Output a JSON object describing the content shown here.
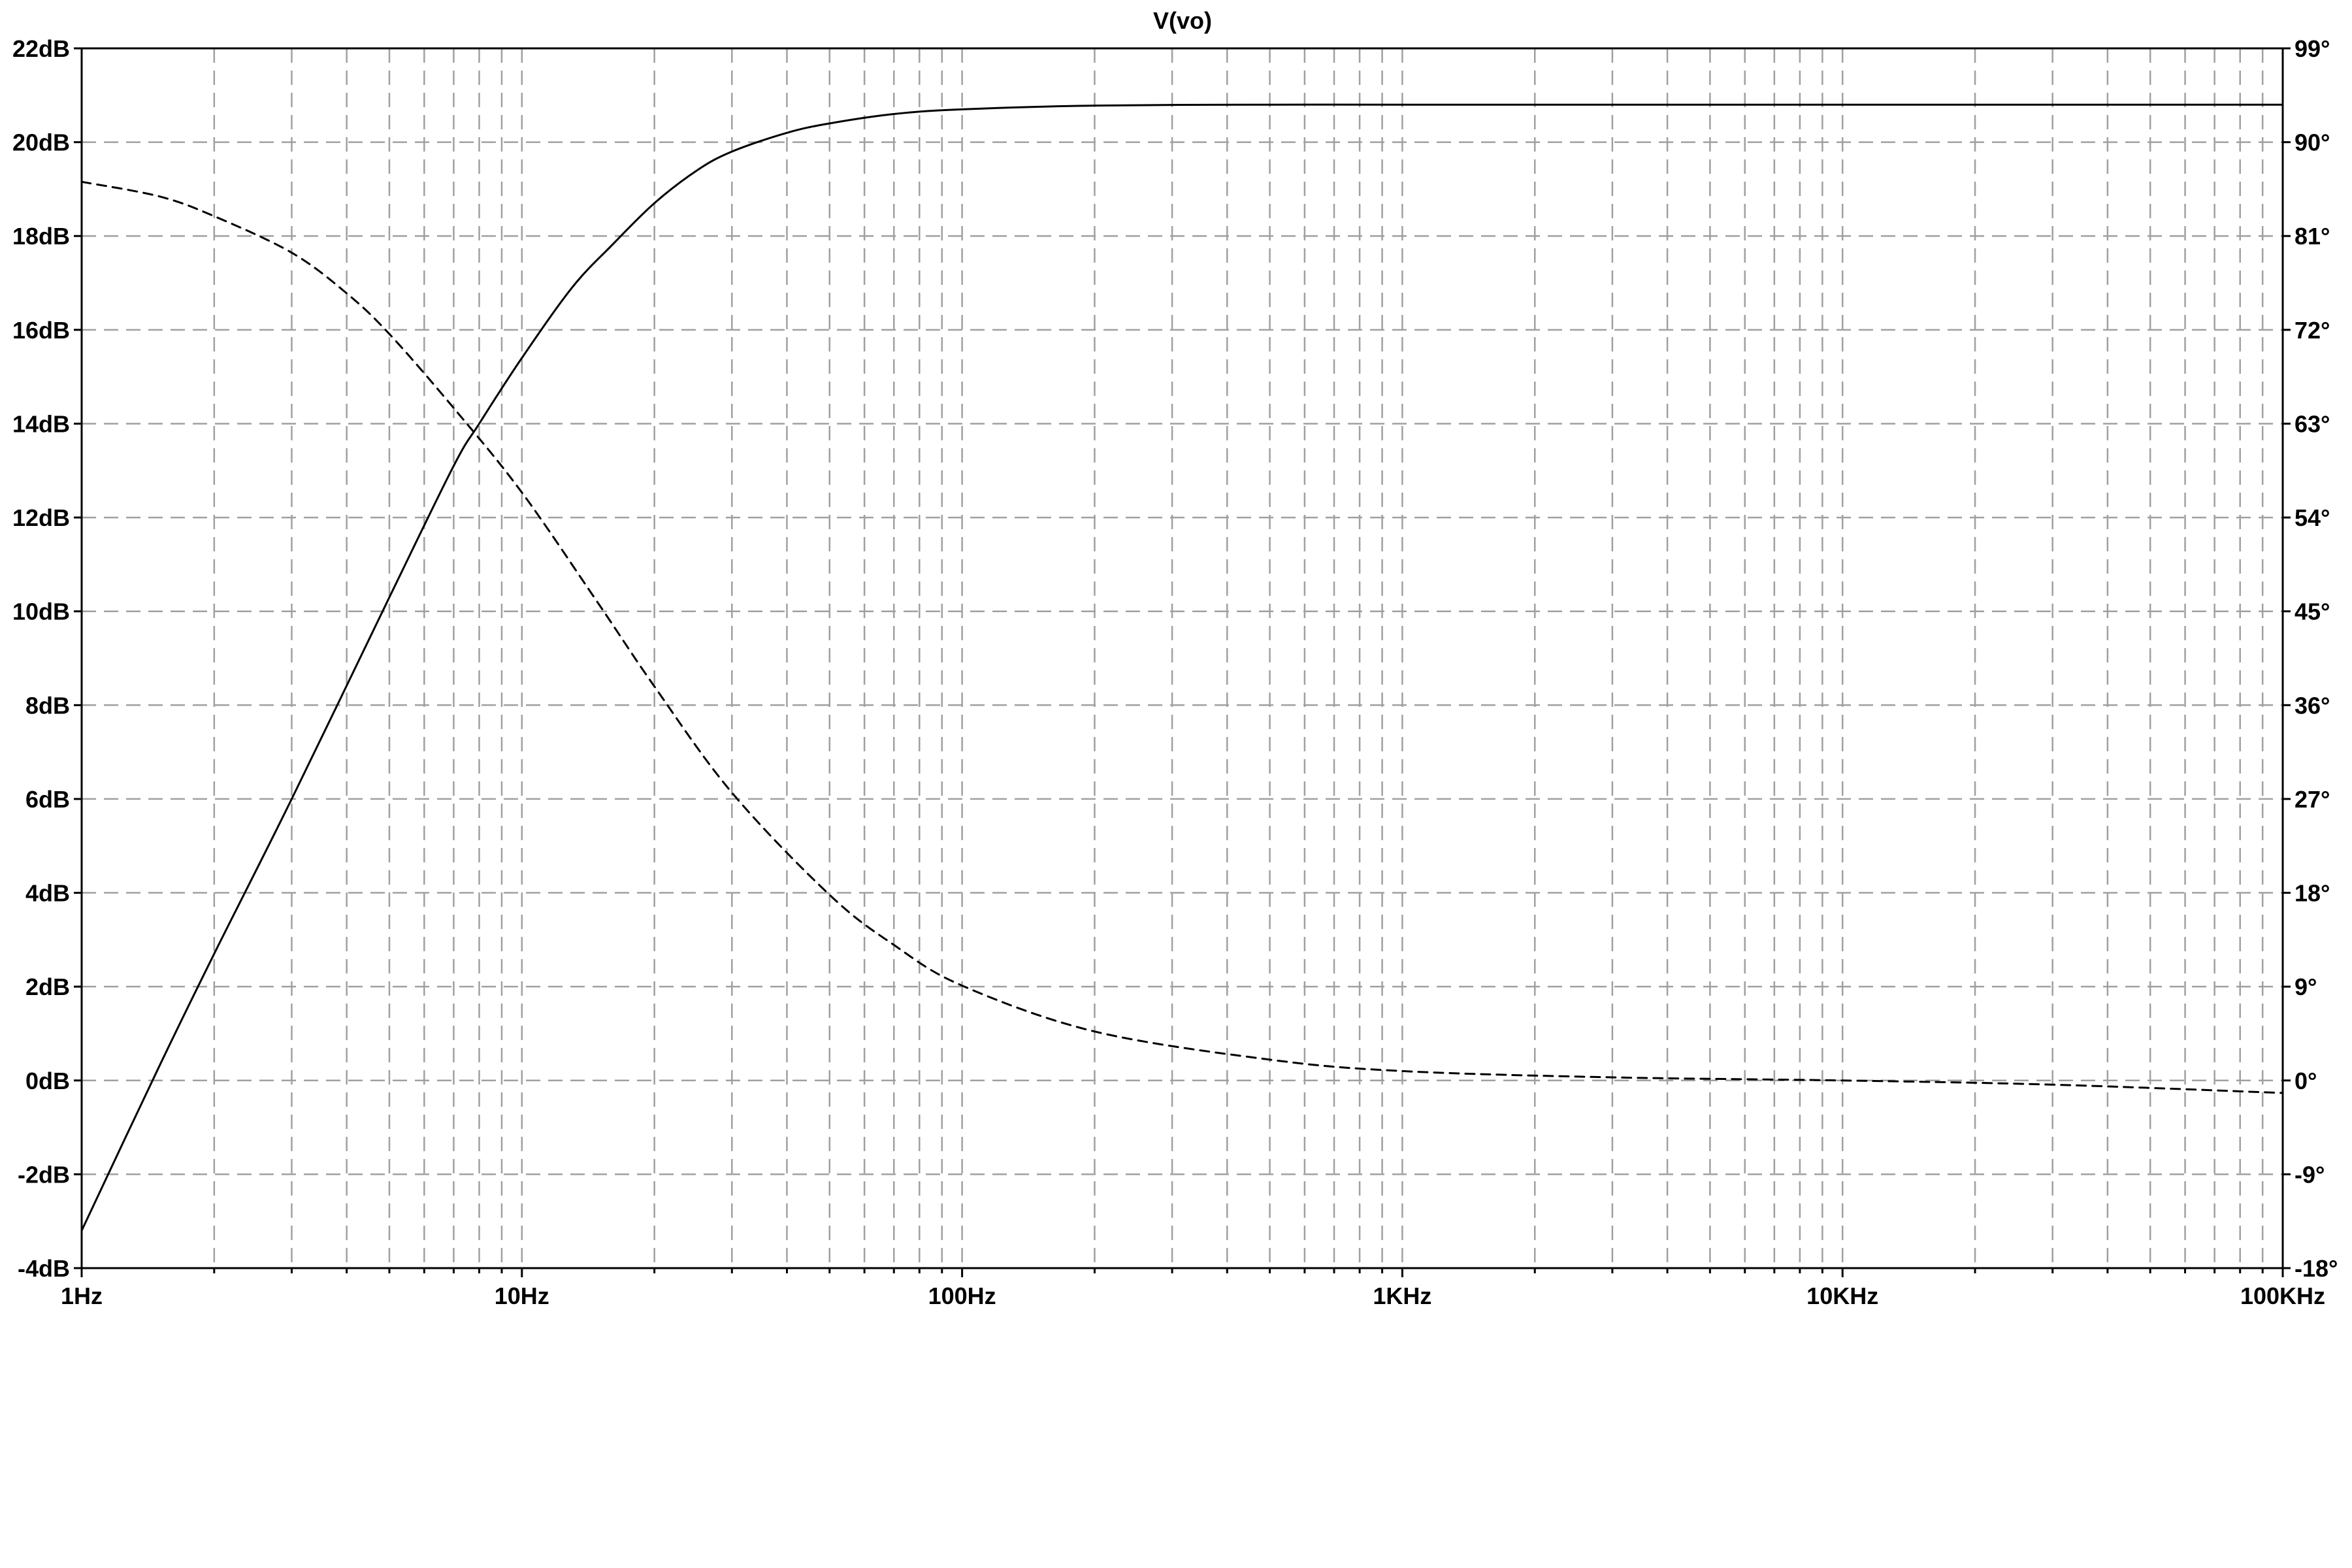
{
  "chart_data": {
    "type": "line",
    "title": "V(vo)",
    "xlabel": "",
    "ylabel": "",
    "x_scale": "log",
    "xlim": [
      1,
      100000
    ],
    "x_ticks": [
      {
        "value": 1,
        "label": "1Hz"
      },
      {
        "value": 10,
        "label": "10Hz"
      },
      {
        "value": 100,
        "label": "100Hz"
      },
      {
        "value": 1000,
        "label": "1KHz"
      },
      {
        "value": 10000,
        "label": "10KHz"
      },
      {
        "value": 100000,
        "label": "100KHz"
      }
    ],
    "y_left": {
      "unit": "dB",
      "range": [
        -4,
        22
      ],
      "ticks": [
        "-4dB",
        "-2dB",
        "0dB",
        "2dB",
        "4dB",
        "6dB",
        "8dB",
        "10dB",
        "12dB",
        "14dB",
        "16dB",
        "18dB",
        "20dB",
        "22dB"
      ],
      "tick_values": [
        -4,
        -2,
        0,
        2,
        4,
        6,
        8,
        10,
        12,
        14,
        16,
        18,
        20,
        22
      ]
    },
    "y_right": {
      "unit": "°",
      "range": [
        -18,
        99
      ],
      "ticks": [
        "-18°",
        "-9°",
        "0°",
        "9°",
        "18°",
        "27°",
        "36°",
        "45°",
        "54°",
        "63°",
        "72°",
        "81°",
        "90°",
        "99°"
      ],
      "tick_values": [
        -18,
        -9,
        0,
        9,
        18,
        27,
        36,
        45,
        54,
        63,
        72,
        81,
        90,
        99
      ]
    },
    "grid": true,
    "series": [
      {
        "style": "solid",
        "axis": "left",
        "color": "#000000",
        "x": [
          1,
          1.5,
          2,
          3,
          5,
          7,
          8,
          10,
          13,
          16,
          20,
          25,
          30,
          40,
          50,
          70,
          100,
          200,
          500,
          1000,
          10000,
          100000
        ],
        "y": [
          -3.2,
          0.3,
          2.7,
          6.0,
          10.3,
          13.1,
          14.0,
          15.4,
          16.9,
          17.8,
          18.7,
          19.4,
          19.8,
          20.2,
          20.4,
          20.6,
          20.7,
          20.78,
          20.8,
          20.8,
          20.8,
          20.8
        ]
      },
      {
        "style": "dashed",
        "axis": "right",
        "color": "#000000",
        "x": [
          1,
          1.5,
          2,
          3,
          4,
          5,
          7,
          10,
          15,
          20,
          30,
          50,
          70,
          100,
          200,
          500,
          1000,
          3000,
          10000,
          30000,
          100000
        ],
        "y": [
          86.2,
          84.8,
          82.9,
          79.4,
          75.5,
          71.6,
          64.5,
          56.4,
          45.6,
          37.8,
          27.6,
          17.8,
          13.0,
          9.1,
          4.7,
          2.0,
          0.9,
          0.3,
          0.0,
          -0.4,
          -1.2
        ]
      }
    ]
  }
}
